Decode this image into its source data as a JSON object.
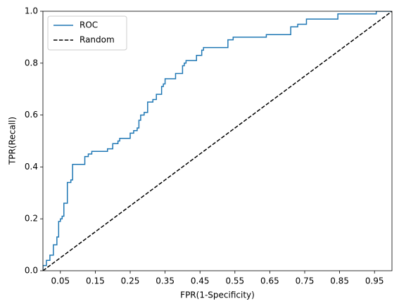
{
  "chart_data": {
    "type": "line",
    "xlabel": "FPR(1-Specificity)",
    "ylabel": "TPR(Recall)",
    "xlim": [
      0,
      1
    ],
    "ylim": [
      0,
      1
    ],
    "xticks": [
      0.05,
      0.15,
      0.25,
      0.35,
      0.45,
      0.55,
      0.65,
      0.75,
      0.85,
      0.95
    ],
    "yticks": [
      {
        "value": 0,
        "label": "0.0"
      },
      0.2,
      0.4,
      0.6,
      0.8,
      {
        "value": 1,
        "label": "1.0"
      }
    ],
    "grid": false,
    "legend": "upper left",
    "series": [
      {
        "name": "ROC",
        "color": "#1f77b4",
        "linestyle": "solid",
        "x": [
          0,
          0,
          0.01,
          0.01,
          0.02,
          0.02,
          0.03,
          0.03,
          0.04,
          0.04,
          0.045,
          0.045,
          0.05,
          0.05,
          0.055,
          0.055,
          0.06,
          0.06,
          0.07,
          0.07,
          0.08,
          0.08,
          0.085,
          0.085,
          0.12,
          0.12,
          0.13,
          0.13,
          0.14,
          0.14,
          0.185,
          0.185,
          0.2,
          0.2,
          0.215,
          0.215,
          0.22,
          0.22,
          0.25,
          0.25,
          0.26,
          0.26,
          0.27,
          0.27,
          0.275,
          0.275,
          0.28,
          0.28,
          0.29,
          0.29,
          0.3,
          0.3,
          0.315,
          0.315,
          0.325,
          0.325,
          0.34,
          0.34,
          0.345,
          0.345,
          0.35,
          0.35,
          0.38,
          0.38,
          0.4,
          0.4,
          0.405,
          0.405,
          0.41,
          0.41,
          0.44,
          0.44,
          0.455,
          0.455,
          0.46,
          0.46,
          0.53,
          0.53,
          0.545,
          0.545,
          0.64,
          0.64,
          0.71,
          0.71,
          0.73,
          0.73,
          0.755,
          0.755,
          0.845,
          0.845,
          0.955,
          0.955,
          1
        ],
        "values": [
          0,
          0.02,
          0.02,
          0.04,
          0.04,
          0.06,
          0.06,
          0.1,
          0.1,
          0.13,
          0.13,
          0.19,
          0.19,
          0.2,
          0.2,
          0.21,
          0.21,
          0.26,
          0.26,
          0.34,
          0.34,
          0.35,
          0.35,
          0.41,
          0.41,
          0.44,
          0.44,
          0.45,
          0.45,
          0.46,
          0.46,
          0.47,
          0.47,
          0.49,
          0.49,
          0.5,
          0.5,
          0.51,
          0.51,
          0.53,
          0.53,
          0.54,
          0.54,
          0.55,
          0.55,
          0.58,
          0.58,
          0.6,
          0.6,
          0.61,
          0.61,
          0.65,
          0.65,
          0.66,
          0.66,
          0.68,
          0.68,
          0.71,
          0.71,
          0.72,
          0.72,
          0.74,
          0.74,
          0.76,
          0.76,
          0.79,
          0.79,
          0.8,
          0.8,
          0.81,
          0.81,
          0.83,
          0.83,
          0.85,
          0.85,
          0.86,
          0.86,
          0.89,
          0.89,
          0.9,
          0.9,
          0.91,
          0.91,
          0.94,
          0.94,
          0.95,
          0.95,
          0.97,
          0.97,
          0.99,
          0.99,
          1,
          1
        ]
      },
      {
        "name": "Random",
        "color": "#000000",
        "linestyle": "dashed",
        "x": [
          0,
          1
        ],
        "values": [
          0,
          1
        ]
      }
    ]
  }
}
